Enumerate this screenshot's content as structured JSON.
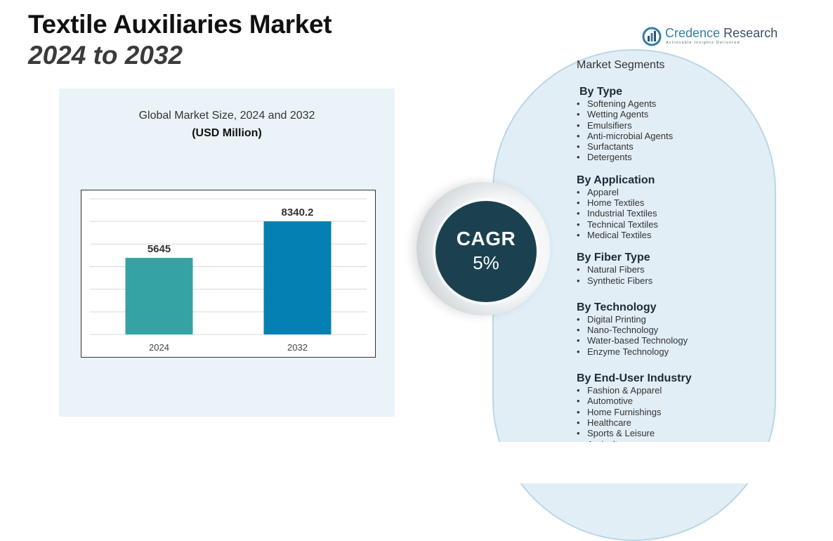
{
  "header": {
    "title": "Textile Auxiliaries Market",
    "subtitle": "2024 to 2032"
  },
  "brand": {
    "name_part1": "Credence",
    "name_part2": "Research",
    "tagline": "Actionable Insights Delivered",
    "accent_color": "#2f7ea8"
  },
  "chart_data": {
    "type": "bar",
    "title": "Global Market Size, 2024 and 2032",
    "unit": "(USD Million)",
    "categories": [
      "2024",
      "2032"
    ],
    "values": [
      5645,
      8340.2
    ],
    "value_labels": [
      "5645",
      "8340.2"
    ],
    "colors": [
      "#35a3a3",
      "#0580b2"
    ],
    "ylim": [
      0,
      10000
    ],
    "grid": true,
    "xlabel": "",
    "ylabel": ""
  },
  "cagr": {
    "label": "CAGR",
    "value": "5%"
  },
  "segments": {
    "heading": "Market Segments",
    "groups": [
      {
        "title": "By Type",
        "items": [
          "Softening Agents",
          "Wetting Agents",
          "Emulsifiers",
          "Anti-microbial Agents",
          "Surfactants",
          "Detergents"
        ]
      },
      {
        "title": "By Application",
        "items": [
          "Apparel",
          "Home Textiles",
          "Industrial Textiles",
          "Technical Textiles",
          "Medical Textiles"
        ]
      },
      {
        "title": "By Fiber Type",
        "items": [
          "Natural Fibers",
          "Synthetic Fibers"
        ]
      },
      {
        "title": "By Technology",
        "items": [
          "Digital Printing",
          "Nano-Technology",
          "Water-based Technology",
          "Enzyme Technology"
        ]
      },
      {
        "title": "By End-User Industry",
        "items": [
          "Fashion & Apparel",
          "Automotive",
          "Home Furnishings",
          "Healthcare",
          "Sports & Leisure",
          "Agriculture"
        ]
      }
    ]
  }
}
